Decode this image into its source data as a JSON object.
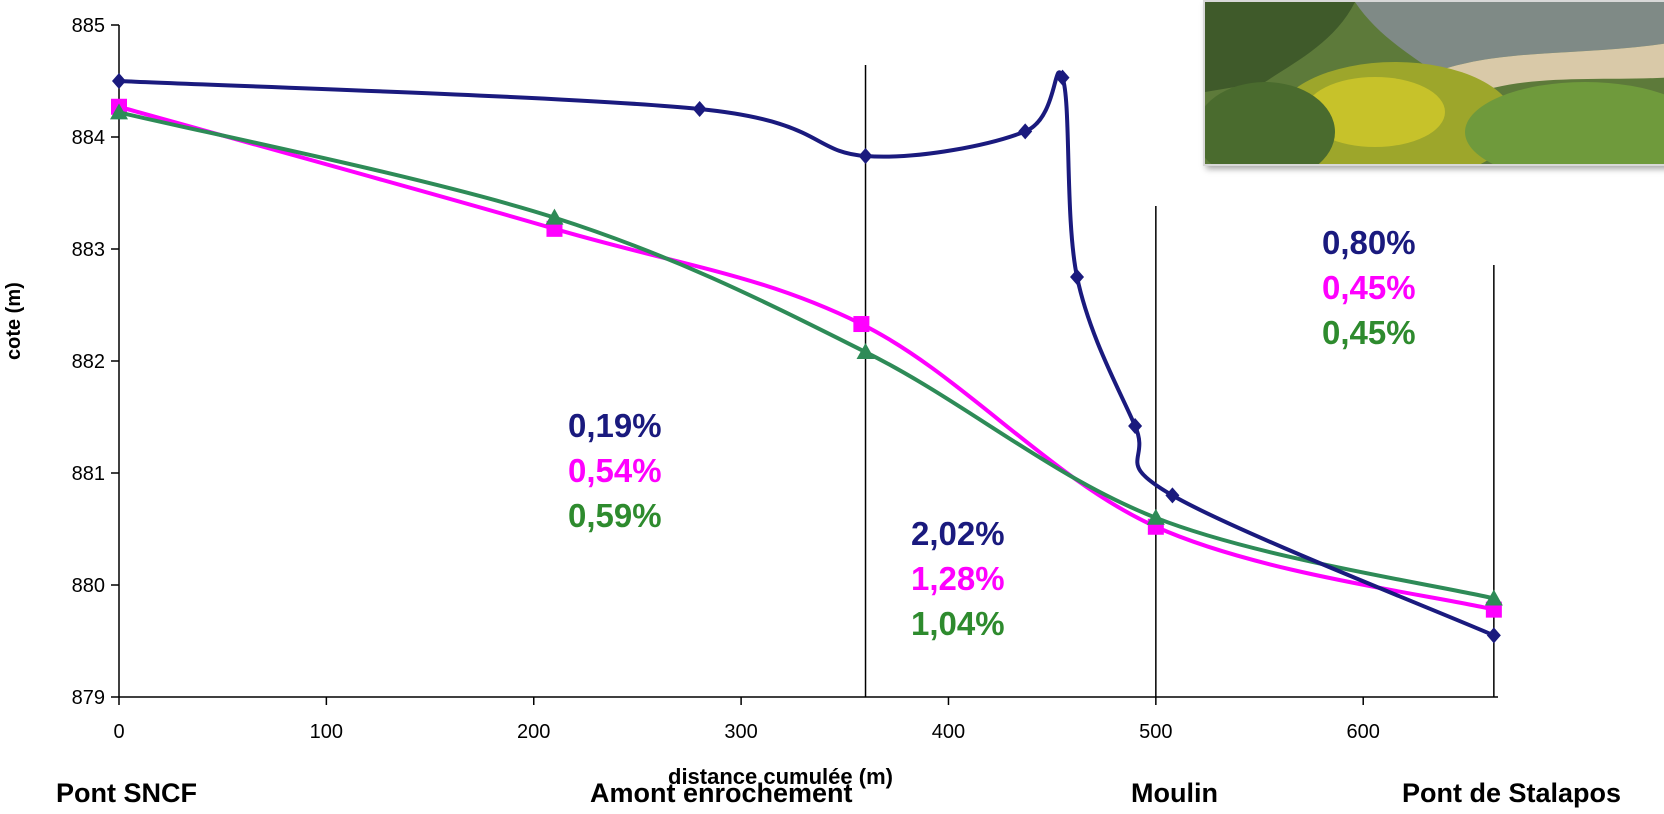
{
  "chart_data": {
    "type": "line",
    "xlabel": "distance cumulée (m)",
    "ylabel": "cote (m)",
    "xlim": [
      0,
      665
    ],
    "ylim": [
      879,
      885
    ],
    "x_ticks": [
      "0",
      "100",
      "200",
      "300",
      "400",
      "500",
      "600"
    ],
    "y_ticks": [
      "879",
      "880",
      "881",
      "882",
      "883",
      "884",
      "885"
    ],
    "grid": false,
    "series": [
      {
        "color": "#1a1a7e",
        "marker": "diamond",
        "x": [
          0,
          280,
          360,
          437,
          455,
          462,
          490,
          508,
          663
        ],
        "y": [
          884.5,
          884.25,
          883.83,
          884.05,
          884.53,
          882.75,
          881.42,
          880.8,
          879.55
        ]
      },
      {
        "color": "#ff00ff",
        "marker": "square",
        "x": [
          0,
          210,
          358,
          500,
          663
        ],
        "y": [
          884.27,
          883.18,
          882.33,
          880.52,
          879.78
        ]
      },
      {
        "color": "#2e8b57",
        "marker": "triangle",
        "x": [
          0,
          210,
          360,
          500,
          663
        ],
        "y": [
          884.22,
          883.28,
          882.08,
          880.6,
          879.88
        ]
      }
    ],
    "vertical_lines_x": [
      360,
      500,
      663
    ],
    "annotations": [
      {
        "group": "amont",
        "values": [
          "0,19%",
          "0,54%",
          "0,59%"
        ]
      },
      {
        "group": "enrochement",
        "values": [
          "2,02%",
          "1,28%",
          "1,04%"
        ]
      },
      {
        "group": "aval",
        "values": [
          "0,80%",
          "0,45%",
          "0,45%"
        ]
      }
    ],
    "site_labels": [
      "Pont SNCF",
      "Amont enrochement",
      "Moulin",
      "Pont de Stalapos"
    ]
  },
  "annotation_colors": [
    "#1a1a7e",
    "#ff00ff",
    "#2e8b2e"
  ]
}
